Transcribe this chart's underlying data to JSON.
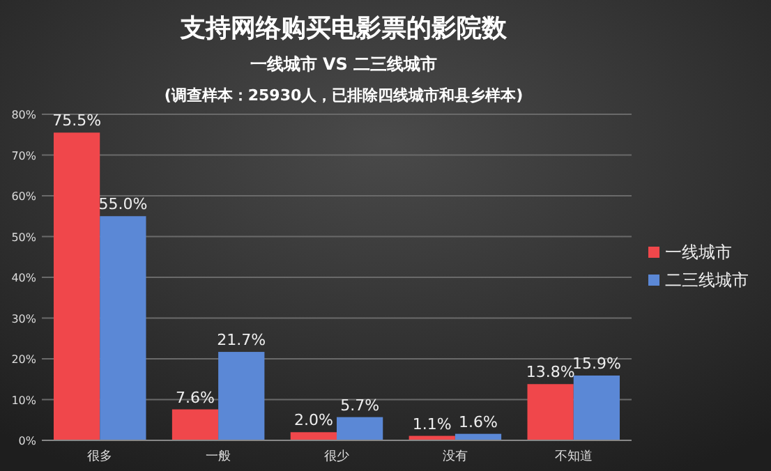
{
  "chart_data": {
    "type": "bar",
    "title": "支持网络购买电影票的影院数",
    "subtitle": "一线城市 VS 二三线城市",
    "annotations": [
      "(调查样本：25930人，已排除四线城市和县乡样本)"
    ],
    "categories": [
      "很多",
      "一般",
      "很少",
      "没有",
      "不知道"
    ],
    "series": [
      {
        "name": "一线城市",
        "color": "#f0474b",
        "values": [
          75.5,
          7.6,
          2.0,
          1.1,
          13.8
        ],
        "value_labels": [
          "75.5%",
          "7.6%",
          "2.0%",
          "1.1%",
          "13.8%"
        ]
      },
      {
        "name": "二三线城市",
        "color": "#5b88d6",
        "values": [
          55.0,
          21.7,
          5.7,
          1.6,
          15.9
        ],
        "value_labels": [
          "55.0%",
          "21.7%",
          "5.7%",
          "1.6%",
          "15.9%"
        ]
      }
    ],
    "ylim": [
      0,
      80
    ],
    "yticks": [
      {
        "value": 0,
        "label": "0%"
      },
      {
        "value": 10,
        "label": "10%"
      },
      {
        "value": 20,
        "label": "20%"
      },
      {
        "value": 30,
        "label": "30%"
      },
      {
        "value": 40,
        "label": "40%"
      },
      {
        "value": 50,
        "label": "50%"
      },
      {
        "value": 60,
        "label": "60%"
      },
      {
        "value": 70,
        "label": "70%"
      },
      {
        "value": 80,
        "label": "80%"
      }
    ],
    "grid": "y",
    "legend": "right"
  }
}
